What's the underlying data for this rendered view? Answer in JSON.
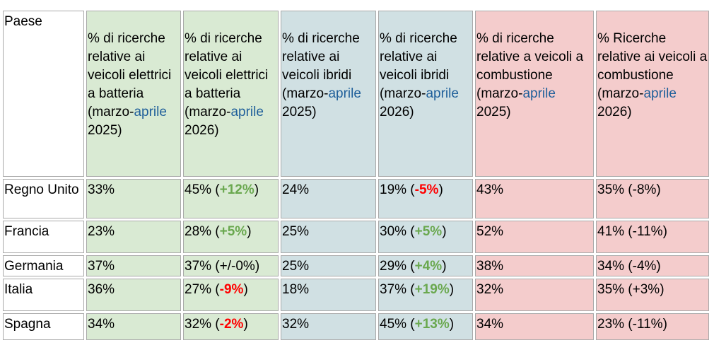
{
  "table": {
    "country_header": "Paese",
    "headers": [
      {
        "pre": "% di ricerche relative ai veicoli elettrici a batteria (marzo-",
        "hl": "aprile",
        "post": " 2025)"
      },
      {
        "pre": "% di ricerche relative ai veicoli elettrici a batteria (marzo-",
        "hl": "aprile",
        "post": " 2026)"
      },
      {
        "pre": "% di ricerche relative ai veicoli ibridi (marzo-",
        "hl": "aprile",
        "post": " 2025)"
      },
      {
        "pre": "% di ricerche relative ai veicoli ibridi (marzo-",
        "hl": "aprile",
        "post": " 2026)"
      },
      {
        "pre": "% di ricerche relative a veicoli a combustione (marzo-",
        "hl": "aprile",
        "post": " 2025)"
      },
      {
        "pre": "% Ricerche relative ai veicoli a combustione (marzo-",
        "hl": "aprile",
        "post": " 2026)"
      }
    ],
    "rows": [
      {
        "country": "Regno Unito",
        "bev25": "33%",
        "bev26": "45%",
        "bev_delta": "+12%",
        "hyb25": "24%",
        "hyb26": "19%",
        "hyb_delta": "-5%",
        "ice25": "43%",
        "ice26": "35% (-8%)"
      },
      {
        "country": "Francia",
        "bev25": "23%",
        "bev26": "28%",
        "bev_delta": "+5%",
        "hyb25": "25%",
        "hyb26": "30%",
        "hyb_delta": "+5%",
        "ice25": "52%",
        "ice26": "41% (-11%)"
      },
      {
        "country": "Germania",
        "bev25": "37%",
        "bev26": "37%",
        "bev_delta": "+/-0%",
        "hyb25": "25%",
        "hyb26": "29%",
        "hyb_delta": "+4%",
        "ice25": "38%",
        "ice26": "34% (-4%)"
      },
      {
        "country": "Italia",
        "bev25": "36%",
        "bev26": "27%",
        "bev_delta": "-9%",
        "hyb25": "18%",
        "hyb26": "37%",
        "hyb_delta": "+19%",
        "ice25": "32%",
        "ice26": "35% (+3%)"
      },
      {
        "country": "Spagna",
        "bev25": "34%",
        "bev26": "32%",
        "bev_delta": "-2%",
        "hyb25": "32%",
        "hyb26": "45%",
        "hyb_delta": "+13%",
        "ice25": "34%",
        "ice26": "23% (-11%)"
      }
    ]
  }
}
